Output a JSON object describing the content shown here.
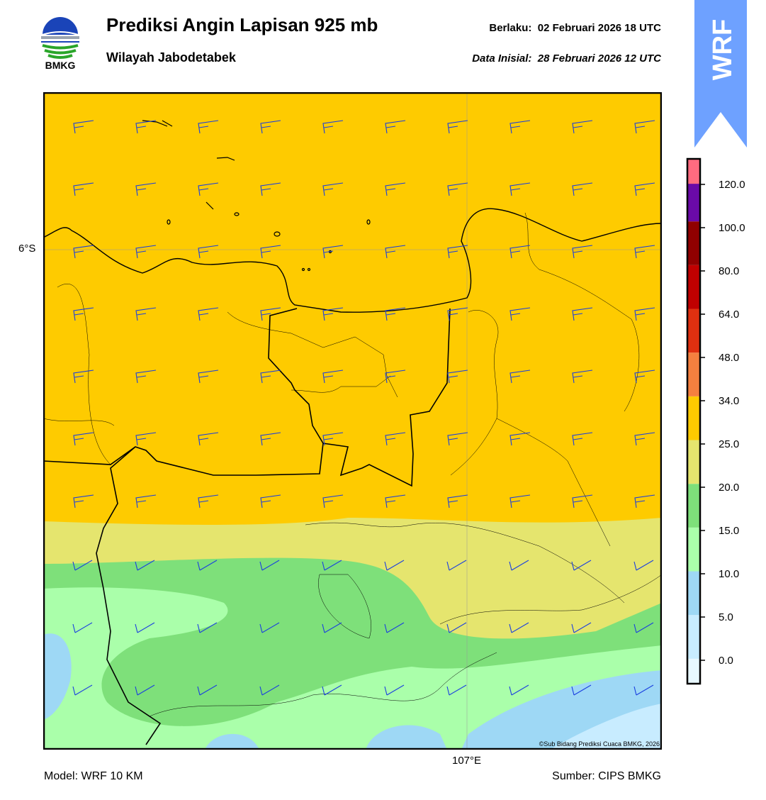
{
  "header": {
    "agency_logo_text": "BMKG",
    "title": "Prediksi Angin Lapisan 925 mb",
    "subtitle": "Wilayah Jabodetabek",
    "valid_label": "Berlaku:",
    "valid_time": "02 Februari 2026 18 UTC",
    "init_label": "Data Inisial:",
    "init_time": "28 Februari 2026 12 UTC",
    "badge": "WRF"
  },
  "map": {
    "lat_label": "6°S",
    "lon_label": "107°E",
    "copyright": "©Sub Bidang Prediksi Cuaca BMKG, 2026",
    "wind_barb_color": "#1a3fe0",
    "coast_color": "#000000"
  },
  "colorbar": {
    "labels": [
      "120.0",
      "100.0",
      "80.0",
      "64.0",
      "48.0",
      "34.0",
      "25.0",
      "20.0",
      "15.0",
      "10.0",
      "5.0",
      "0.0"
    ],
    "colors": [
      "#e8f8ff",
      "#c8ecff",
      "#9ed8f5",
      "#aaffaa",
      "#7ee07a",
      "#e5e56e",
      "#fecb00",
      "#f5803f",
      "#e03010",
      "#c00000",
      "#900000",
      "#6a0aa8",
      "#ff6b80"
    ]
  },
  "footer": {
    "model": "Model: WRF 10 KM",
    "source": "Sumber: CIPS BMKG"
  }
}
